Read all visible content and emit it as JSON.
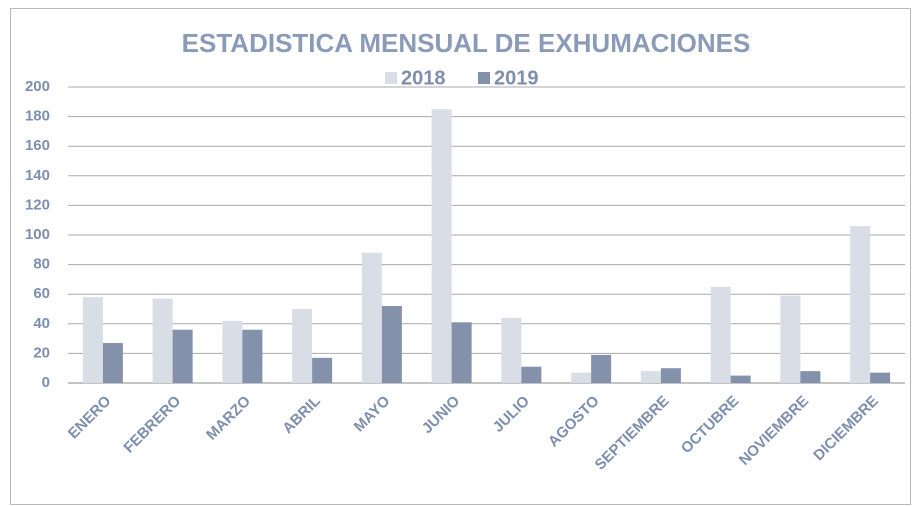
{
  "chart_data": {
    "type": "bar",
    "title": "ESTADISTICA  MENSUAL DE EXHUMACIONES",
    "categories": [
      "ENERO",
      "FEBRERO",
      "MARZO",
      "ABRIL",
      "MAYO",
      "JUNIO",
      "JULIO",
      "AGOSTO",
      "SEPTIEMBRE",
      "OCTUBRE",
      "NOVIEMBRE",
      "DICIEMBRE"
    ],
    "series": [
      {
        "name": "2018",
        "color": "#d9dde6",
        "values": [
          58,
          57,
          42,
          50,
          88,
          185,
          44,
          7,
          8,
          65,
          59,
          106
        ]
      },
      {
        "name": "2019",
        "color": "#8391ab",
        "values": [
          27,
          36,
          36,
          17,
          52,
          41,
          11,
          19,
          10,
          5,
          8,
          7
        ]
      }
    ],
    "ylim": [
      0,
      200
    ],
    "yticks": [
      0,
      20,
      40,
      60,
      80,
      100,
      120,
      140,
      160,
      180,
      200
    ],
    "grid": true,
    "legend": "top"
  }
}
